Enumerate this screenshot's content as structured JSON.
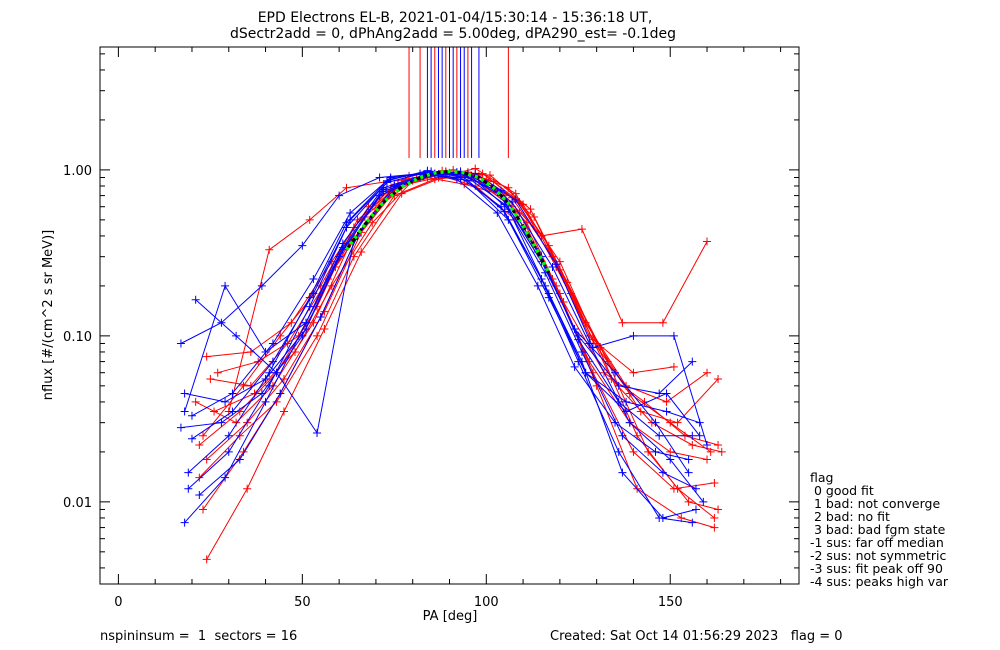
{
  "chart_data": {
    "type": "line",
    "title_line1": "EPD Electrons EL-B, 2021-01-04/15:30:14 - 15:36:18 UT,",
    "title_line2": "dSectr2add = 0, dPhAng2add = 5.00deg, dPA290_est=  -0.1deg",
    "xlabel": "PA [deg]",
    "ylabel": "nflux [#/(cm^2 s sr MeV)]",
    "xlim": [
      -5,
      185
    ],
    "ylim": [
      0.0032,
      5.5
    ],
    "yscale": "log",
    "xticks": [
      0,
      50,
      100,
      150
    ],
    "xtick_labels": [
      "0",
      "50",
      "100",
      "150"
    ],
    "yticks": [
      0.01,
      0.1,
      1.0
    ],
    "ytick_labels": [
      "0.01",
      "0.10",
      "1.00"
    ],
    "colors": {
      "red": "#ff0000",
      "blue": "#0000ff",
      "fit_black": "#000000",
      "fit_green": "#00ff00"
    },
    "series": [
      {
        "color": "red",
        "x": [
          24,
          35,
          45,
          56,
          66,
          77,
          88,
          98,
          109,
          120,
          130,
          141,
          153,
          162
        ],
        "y": [
          0.0045,
          0.012,
          0.035,
          0.11,
          0.32,
          0.72,
          0.9,
          0.85,
          0.55,
          0.18,
          0.05,
          0.012,
          0.008,
          0.007
        ]
      },
      {
        "color": "red",
        "x": [
          22,
          33,
          43,
          54,
          64,
          75,
          86,
          96,
          107,
          118,
          128,
          139,
          150,
          160
        ],
        "y": [
          0.022,
          0.035,
          0.06,
          0.15,
          0.45,
          0.82,
          0.95,
          0.9,
          0.6,
          0.22,
          0.07,
          0.03,
          0.02,
          0.018
        ]
      },
      {
        "color": "red",
        "x": [
          24,
          36,
          47,
          58,
          68,
          79,
          89,
          100,
          111,
          121,
          132,
          143,
          154,
          163
        ],
        "y": [
          0.075,
          0.08,
          0.12,
          0.28,
          0.6,
          0.92,
          0.98,
          0.88,
          0.48,
          0.16,
          0.06,
          0.04,
          0.025,
          0.022
        ]
      },
      {
        "color": "red",
        "x": [
          25,
          36,
          46,
          57,
          67,
          78,
          89,
          99,
          110,
          120,
          131,
          142,
          152,
          163
        ],
        "y": [
          0.055,
          0.05,
          0.09,
          0.22,
          0.52,
          0.88,
          0.97,
          0.95,
          0.62,
          0.25,
          0.085,
          0.035,
          0.03,
          0.055
        ]
      },
      {
        "color": "red",
        "x": [
          23,
          34,
          44,
          55,
          65,
          76,
          87,
          97,
          108,
          119,
          129,
          140,
          151,
          162
        ],
        "y": [
          0.009,
          0.02,
          0.045,
          0.13,
          0.4,
          0.8,
          0.93,
          0.8,
          0.5,
          0.2,
          0.06,
          0.02,
          0.012,
          0.013
        ]
      },
      {
        "color": "red",
        "x": [
          30,
          41,
          52,
          62,
          73,
          84,
          94,
          105,
          115,
          126,
          137,
          148,
          160
        ],
        "y": [
          0.035,
          0.33,
          0.5,
          0.78,
          0.85,
          0.9,
          0.82,
          0.7,
          0.4,
          0.44,
          0.12,
          0.12,
          0.37
        ]
      },
      {
        "color": "red",
        "x": [
          22,
          33,
          43,
          54,
          64,
          75,
          86,
          96,
          107,
          118,
          128,
          139,
          150,
          161
        ],
        "y": [
          0.014,
          0.025,
          0.04,
          0.1,
          0.3,
          0.7,
          0.88,
          0.92,
          0.68,
          0.3,
          0.1,
          0.045,
          0.03,
          0.02
        ]
      },
      {
        "color": "red",
        "x": [
          26,
          37,
          48,
          58,
          69,
          80,
          90,
          101,
          112,
          122,
          133,
          144,
          155,
          163
        ],
        "y": [
          0.035,
          0.045,
          0.08,
          0.2,
          0.48,
          0.86,
          0.96,
          0.93,
          0.58,
          0.21,
          0.07,
          0.02,
          0.01,
          0.009
        ]
      },
      {
        "color": "red",
        "x": [
          21,
          32,
          42,
          53,
          63,
          74,
          85,
          95,
          106,
          117,
          127,
          138,
          149,
          160
        ],
        "y": [
          0.04,
          0.03,
          0.05,
          0.12,
          0.36,
          0.76,
          0.92,
          0.97,
          0.78,
          0.35,
          0.12,
          0.05,
          0.04,
          0.06
        ]
      },
      {
        "color": "red",
        "x": [
          24,
          35,
          45,
          56,
          66,
          77,
          88,
          98,
          109,
          120,
          130,
          141,
          152,
          162
        ],
        "y": [
          0.018,
          0.03,
          0.055,
          0.14,
          0.42,
          0.84,
          0.99,
          0.92,
          0.64,
          0.28,
          0.09,
          0.025,
          0.012,
          0.008
        ]
      },
      {
        "color": "red",
        "x": [
          27,
          38,
          49,
          59,
          70,
          81,
          91,
          102,
          113,
          123,
          134,
          145,
          156,
          164
        ],
        "y": [
          0.06,
          0.07,
          0.1,
          0.26,
          0.58,
          0.9,
          1.0,
          0.85,
          0.52,
          0.18,
          0.055,
          0.03,
          0.022,
          0.02
        ]
      },
      {
        "color": "red",
        "x": [
          23,
          34,
          44,
          55,
          65,
          76,
          87,
          97,
          108,
          119,
          129,
          140,
          151
        ],
        "y": [
          0.025,
          0.05,
          0.1,
          0.2,
          0.5,
          0.8,
          0.9,
          1.02,
          0.72,
          0.26,
          0.095,
          0.06,
          0.065
        ]
      },
      {
        "color": "blue",
        "x": [
          18,
          29,
          40,
          51,
          61,
          72,
          83,
          93,
          104,
          115,
          125,
          136,
          147,
          156
        ],
        "y": [
          0.0075,
          0.014,
          0.04,
          0.12,
          0.36,
          0.78,
          0.93,
          0.9,
          0.6,
          0.22,
          0.07,
          0.02,
          0.008,
          0.0075
        ]
      },
      {
        "color": "blue",
        "x": [
          17,
          28,
          39,
          50,
          60,
          71,
          82,
          92,
          103,
          114,
          124,
          135,
          146,
          155
        ],
        "y": [
          0.09,
          0.12,
          0.2,
          0.35,
          0.7,
          0.9,
          0.95,
          0.88,
          0.55,
          0.2,
          0.065,
          0.03,
          0.02,
          0.018
        ]
      },
      {
        "color": "blue",
        "x": [
          19,
          30,
          41,
          52,
          62,
          73,
          84,
          94,
          105,
          116,
          126,
          137,
          148,
          157
        ],
        "y": [
          0.012,
          0.02,
          0.05,
          0.15,
          0.45,
          0.84,
          0.97,
          0.93,
          0.62,
          0.24,
          0.08,
          0.025,
          0.015,
          0.012
        ]
      },
      {
        "color": "blue",
        "x": [
          20,
          31,
          42,
          53,
          63,
          74,
          85,
          95,
          106,
          117,
          127,
          138,
          149,
          158
        ],
        "y": [
          0.024,
          0.035,
          0.07,
          0.18,
          0.5,
          0.88,
          0.98,
          0.95,
          0.58,
          0.18,
          0.06,
          0.04,
          0.035,
          0.03
        ]
      },
      {
        "color": "blue",
        "x": [
          18,
          29,
          40,
          51,
          61,
          72,
          83,
          93,
          104,
          115,
          125,
          136,
          147,
          156
        ],
        "y": [
          0.045,
          0.04,
          0.055,
          0.11,
          0.33,
          0.74,
          0.92,
          0.96,
          0.7,
          0.28,
          0.1,
          0.05,
          0.045,
          0.07
        ]
      },
      {
        "color": "blue",
        "x": [
          21,
          32,
          43,
          54,
          64,
          75,
          86,
          96,
          107,
          118,
          128,
          139,
          150,
          159
        ],
        "y": [
          0.165,
          0.1,
          0.06,
          0.026,
          0.38,
          0.8,
          0.95,
          0.92,
          0.64,
          0.26,
          0.09,
          0.03,
          0.018,
          0.01
        ]
      },
      {
        "color": "blue",
        "x": [
          17,
          28,
          39,
          50,
          60,
          71,
          82,
          92,
          103,
          114,
          124,
          135,
          146,
          155
        ],
        "y": [
          0.028,
          0.03,
          0.045,
          0.1,
          0.3,
          0.7,
          0.9,
          0.97,
          0.74,
          0.32,
          0.11,
          0.06,
          0.03,
          0.015
        ]
      },
      {
        "color": "blue",
        "x": [
          19,
          30,
          41,
          52,
          62,
          73,
          84,
          94,
          105,
          116,
          126,
          137,
          148,
          157
        ],
        "y": [
          0.015,
          0.025,
          0.06,
          0.17,
          0.48,
          0.86,
          0.99,
          0.9,
          0.56,
          0.2,
          0.07,
          0.015,
          0.008,
          0.009
        ]
      },
      {
        "color": "blue",
        "x": [
          20,
          31,
          42,
          53,
          63,
          74,
          85,
          95,
          106,
          117,
          127,
          138,
          149,
          158
        ],
        "y": [
          0.033,
          0.045,
          0.09,
          0.22,
          0.55,
          0.9,
          0.96,
          0.86,
          0.5,
          0.17,
          0.06,
          0.035,
          0.045,
          0.025
        ]
      },
      {
        "color": "blue",
        "x": [
          22,
          33,
          44,
          55,
          65,
          76,
          87,
          97,
          108,
          119,
          129,
          140,
          151,
          160
        ],
        "y": [
          0.011,
          0.018,
          0.045,
          0.13,
          0.4,
          0.82,
          0.94,
          0.95,
          0.66,
          0.27,
          0.085,
          0.1,
          0.1,
          0.022
        ]
      },
      {
        "color": "blue",
        "x": [
          18,
          29,
          40,
          51,
          61,
          72,
          83,
          93,
          104,
          115,
          125,
          136,
          147,
          156
        ],
        "y": [
          0.035,
          0.2,
          0.08,
          0.12,
          0.34,
          0.76,
          0.92,
          0.98,
          0.75,
          0.3,
          0.095,
          0.04,
          0.025,
          0.025
        ]
      }
    ],
    "fit_curve": {
      "x": [
        62,
        67,
        72,
        77,
        82,
        86,
        90,
        94,
        98,
        102,
        106,
        110,
        114,
        117
      ],
      "y": [
        0.33,
        0.47,
        0.64,
        0.79,
        0.9,
        0.96,
        0.98,
        0.96,
        0.9,
        0.78,
        0.63,
        0.46,
        0.32,
        0.24
      ]
    },
    "spikes": [
      {
        "x": 79,
        "color": "red"
      },
      {
        "x": 82,
        "color": "red"
      },
      {
        "x": 84,
        "color": "blue"
      },
      {
        "x": 85,
        "color": "blue"
      },
      {
        "x": 86,
        "color": "red"
      },
      {
        "x": 87,
        "color": "blue"
      },
      {
        "x": 88,
        "color": "blue"
      },
      {
        "x": 89,
        "color": "red"
      },
      {
        "x": 90,
        "color": "blue"
      },
      {
        "x": 91,
        "color": "blue"
      },
      {
        "x": 92,
        "color": "red"
      },
      {
        "x": 93,
        "color": "blue"
      },
      {
        "x": 94,
        "color": "blue"
      },
      {
        "x": 95,
        "color": "red"
      },
      {
        "x": 96,
        "color": "blue"
      },
      {
        "x": 98,
        "color": "blue"
      },
      {
        "x": 106,
        "color": "red"
      }
    ],
    "spike_bottom": 1.18
  },
  "legend": {
    "title": "flag",
    "items": [
      " 0 good fit",
      " 1 bad: not converge",
      " 2 bad: no fit",
      " 3 bad: bad fgm state",
      "-1 sus: far off median",
      "-2 sus: not symmetric",
      "-3 sus: fit peak off 90",
      "-4 sus: peaks high var"
    ]
  },
  "footer": {
    "left": "nspininsum =  1  sectors = 16",
    "right": "Created: Sat Oct 14 01:56:29 2023   flag = 0"
  }
}
